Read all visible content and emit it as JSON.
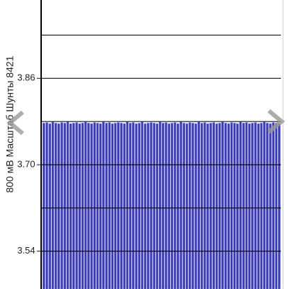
{
  "chart_data": {
    "type": "bar",
    "y_label": "800 мВ Масштаб  Шунты 8421",
    "ylim": [
      3.47,
      4.005
    ],
    "yticks": [
      3.86,
      {
        "value": 3.7,
        "label": "3.70"
      },
      3.54
    ],
    "gridlines": [
      3.94,
      3.86,
      3.78,
      3.7,
      3.62,
      3.54
    ],
    "color": "#3b3bb5",
    "values": [
      3.777,
      3.778,
      3.776,
      3.779,
      3.777,
      3.776,
      3.778,
      3.777,
      3.779,
      3.776,
      3.777,
      3.778,
      3.776,
      3.777,
      3.779,
      3.777,
      3.776,
      3.778,
      3.777,
      3.776,
      3.779,
      3.777,
      3.778,
      3.776,
      3.777,
      3.778,
      3.777,
      3.776,
      3.779,
      3.777,
      3.778,
      3.776,
      3.777,
      3.779,
      3.776,
      3.777,
      3.778,
      3.777,
      3.776,
      3.779,
      3.777,
      3.778,
      3.776,
      3.777,
      3.778,
      3.776,
      3.779,
      3.777,
      3.776,
      3.778,
      3.777,
      3.776,
      3.779,
      3.777,
      3.778,
      3.776,
      3.777,
      3.778,
      3.776,
      3.777,
      3.779,
      3.777,
      3.776,
      3.778,
      3.777,
      3.776,
      3.779,
      3.777,
      3.778,
      3.776,
      3.777,
      3.778,
      3.776,
      3.777,
      3.779,
      3.777,
      3.776,
      3.778,
      3.777,
      3.776
    ]
  }
}
